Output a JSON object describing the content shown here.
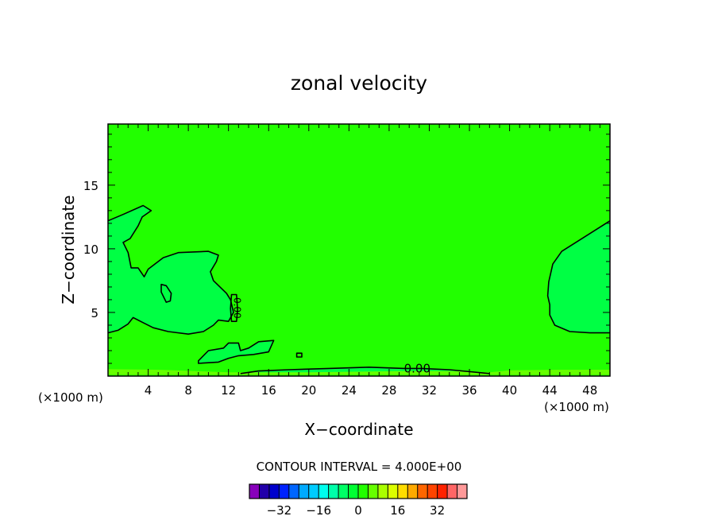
{
  "chart_data": {
    "type": "heatmap",
    "title": "zonal velocity",
    "xlabel": "X−coordinate",
    "ylabel": "Z−coordinate",
    "x_units_left": "(×1000 m)",
    "x_units_right": "(×1000 m)",
    "xlim": [
      0,
      50
    ],
    "ylim": [
      0,
      19.8
    ],
    "x_ticks": [
      4,
      8,
      12,
      16,
      20,
      24,
      28,
      32,
      36,
      40,
      44,
      48
    ],
    "x_tick_labels": [
      "4",
      "8",
      "12",
      "16",
      "20",
      "24",
      "28",
      "32",
      "36",
      "40",
      "44",
      "48"
    ],
    "y_ticks": [
      5,
      10,
      15
    ],
    "y_tick_labels": [
      "5",
      "10",
      "15"
    ],
    "background_color": "#22ff00",
    "contour_label": "0.00",
    "contour_interval_text": "CONTOUR INTERVAL = 4.000E+00",
    "colorbar": {
      "colors": [
        "#8800bb",
        "#2200aa",
        "#0000cc",
        "#0022ff",
        "#0066ff",
        "#00aaff",
        "#00ccff",
        "#00ffee",
        "#00ffaa",
        "#00ff66",
        "#00ff33",
        "#22ff00",
        "#66ff00",
        "#aaff00",
        "#ddff00",
        "#ffdd00",
        "#ffaa00",
        "#ff6600",
        "#ff4400",
        "#ff2200",
        "#ff6666",
        "#ff9999"
      ],
      "tick_labels": [
        "−32",
        "−16",
        "0",
        "16",
        "32"
      ],
      "tick_values": [
        -32,
        -16,
        0,
        16,
        32
      ]
    },
    "regions": [
      {
        "name": "west-mid-region",
        "color": "#00ff44",
        "boundary": [
          [
            0,
            3.4
          ],
          [
            1,
            3.6
          ],
          [
            2,
            4.1
          ],
          [
            2.5,
            4.6
          ],
          [
            3.5,
            4.2
          ],
          [
            4.5,
            3.8
          ],
          [
            6,
            3.5
          ],
          [
            8,
            3.3
          ],
          [
            9.5,
            3.5
          ],
          [
            10.5,
            4.0
          ],
          [
            11,
            4.4
          ],
          [
            12,
            4.3
          ],
          [
            12.5,
            5.0
          ],
          [
            12.2,
            6.0
          ],
          [
            11.8,
            6.5
          ],
          [
            10.5,
            7.5
          ],
          [
            10.2,
            8.2
          ],
          [
            10.8,
            9.0
          ],
          [
            11,
            9.5
          ],
          [
            10,
            9.8
          ],
          [
            7,
            9.7
          ],
          [
            5.5,
            9.3
          ],
          [
            4,
            8.4
          ],
          [
            3.6,
            7.8
          ],
          [
            3,
            8.5
          ],
          [
            2.3,
            8.5
          ],
          [
            2,
            9.7
          ],
          [
            1.5,
            10.5
          ],
          [
            2.2,
            10.8
          ],
          [
            3,
            11.8
          ],
          [
            3.4,
            12.5
          ],
          [
            4.3,
            13.0
          ],
          [
            3.5,
            13.4
          ],
          [
            1.5,
            12.7
          ],
          [
            0,
            12.2
          ]
        ]
      },
      {
        "name": "east-region",
        "color": "#00ff44",
        "boundary": [
          [
            50,
            3.4
          ],
          [
            48,
            3.4
          ],
          [
            46,
            3.5
          ],
          [
            44.5,
            4.0
          ],
          [
            44,
            4.8
          ],
          [
            44,
            5.6
          ],
          [
            43.8,
            6.3
          ],
          [
            43.9,
            7.4
          ],
          [
            44.3,
            8.8
          ],
          [
            45.2,
            9.8
          ],
          [
            47,
            10.7
          ],
          [
            49,
            11.7
          ],
          [
            50,
            12.2
          ]
        ]
      },
      {
        "name": "bottom-strip-region",
        "color": "#00ff44",
        "boundary": [
          [
            9,
            1.0
          ],
          [
            11,
            1.1
          ],
          [
            12,
            1.4
          ],
          [
            13,
            1.6
          ],
          [
            14.5,
            1.7
          ],
          [
            16,
            1.9
          ],
          [
            16.5,
            2.8
          ],
          [
            15,
            2.7
          ],
          [
            14,
            2.2
          ],
          [
            13.2,
            2.0
          ],
          [
            13,
            2.6
          ],
          [
            12,
            2.6
          ],
          [
            11.5,
            2.2
          ],
          [
            10,
            2.0
          ],
          [
            9,
            1.2
          ]
        ]
      },
      {
        "name": "bottom-shear-region",
        "color": "#00ff44",
        "boundary": [
          [
            13.2,
            0.2
          ],
          [
            15,
            0.4
          ],
          [
            18,
            0.5
          ],
          [
            22,
            0.6
          ],
          [
            26,
            0.7
          ],
          [
            30,
            0.6
          ],
          [
            34,
            0.5
          ],
          [
            38,
            0.2
          ],
          [
            13.2,
            0.2
          ]
        ]
      },
      {
        "name": "bottom-layer-region",
        "color": "#66ff00",
        "boundary": [
          [
            0,
            0.1
          ],
          [
            50,
            0.1
          ],
          [
            50,
            0.5
          ],
          [
            45,
            0.5
          ],
          [
            40,
            0.45
          ],
          [
            38,
            0.3
          ],
          [
            34,
            0.4
          ],
          [
            30,
            0.4
          ],
          [
            20,
            0.3
          ],
          [
            12,
            0.3
          ],
          [
            5,
            0.5
          ],
          [
            0,
            0.55
          ]
        ]
      }
    ],
    "contours": [
      {
        "name": "contour-west",
        "closed": false,
        "points": [
          [
            0,
            3.4
          ],
          [
            1,
            3.6
          ],
          [
            2,
            4.1
          ],
          [
            2.5,
            4.6
          ],
          [
            3.5,
            4.2
          ],
          [
            4.5,
            3.8
          ],
          [
            6,
            3.5
          ],
          [
            8,
            3.3
          ],
          [
            9.5,
            3.5
          ],
          [
            10.5,
            4.0
          ],
          [
            11,
            4.4
          ],
          [
            12,
            4.3
          ],
          [
            12.5,
            5.0
          ],
          [
            12.2,
            6.0
          ],
          [
            11.8,
            6.5
          ],
          [
            10.5,
            7.5
          ],
          [
            10.2,
            8.2
          ],
          [
            10.8,
            9.0
          ],
          [
            11,
            9.5
          ],
          [
            10,
            9.8
          ],
          [
            7,
            9.7
          ],
          [
            5.5,
            9.3
          ],
          [
            4,
            8.4
          ],
          [
            3.6,
            7.8
          ],
          [
            3,
            8.5
          ],
          [
            2.3,
            8.5
          ],
          [
            2,
            9.7
          ],
          [
            1.5,
            10.5
          ],
          [
            2.2,
            10.8
          ],
          [
            3,
            11.8
          ],
          [
            3.4,
            12.5
          ],
          [
            4.3,
            13.0
          ],
          [
            3.5,
            13.4
          ],
          [
            1.5,
            12.7
          ],
          [
            0,
            12.2
          ]
        ]
      },
      {
        "name": "contour-east",
        "closed": false,
        "points": [
          [
            50,
            3.4
          ],
          [
            48,
            3.4
          ],
          [
            46,
            3.5
          ],
          [
            44.5,
            4.0
          ],
          [
            44,
            4.8
          ],
          [
            44,
            5.6
          ],
          [
            43.8,
            6.3
          ],
          [
            43.9,
            7.4
          ],
          [
            44.3,
            8.8
          ],
          [
            45.2,
            9.8
          ],
          [
            47,
            10.7
          ],
          [
            49,
            11.7
          ],
          [
            50,
            12.2
          ]
        ]
      },
      {
        "name": "contour-loop",
        "closed": true,
        "points": [
          [
            5.3,
            7.2
          ],
          [
            5.8,
            7.1
          ],
          [
            6.3,
            6.5
          ],
          [
            6.2,
            5.9
          ],
          [
            5.8,
            5.8
          ],
          [
            5.3,
            6.6
          ]
        ]
      },
      {
        "name": "contour-label-loop",
        "closed": true,
        "points": [
          [
            12.3,
            6.4
          ],
          [
            12.8,
            6.4
          ],
          [
            12.9,
            5.2
          ],
          [
            12.8,
            4.3
          ],
          [
            12.3,
            4.3
          ],
          [
            12.2,
            5.3
          ]
        ]
      },
      {
        "name": "contour-bottom-strip",
        "closed": true,
        "points": [
          [
            9,
            1.0
          ],
          [
            11,
            1.1
          ],
          [
            12,
            1.4
          ],
          [
            13,
            1.6
          ],
          [
            14.5,
            1.7
          ],
          [
            16,
            1.9
          ],
          [
            16.5,
            2.8
          ],
          [
            15,
            2.7
          ],
          [
            14,
            2.2
          ],
          [
            13.2,
            2.0
          ],
          [
            13,
            2.6
          ],
          [
            12,
            2.6
          ],
          [
            11.5,
            2.2
          ],
          [
            10,
            2.0
          ],
          [
            9,
            1.2
          ]
        ]
      },
      {
        "name": "contour-bottom-line",
        "closed": false,
        "points": [
          [
            13.2,
            0.2
          ],
          [
            15,
            0.4
          ],
          [
            18,
            0.5
          ],
          [
            22,
            0.6
          ],
          [
            26,
            0.7
          ],
          [
            29.5,
            0.6
          ],
          [
            31.2,
            0.6
          ],
          [
            34,
            0.5
          ],
          [
            38,
            0.2
          ]
        ]
      },
      {
        "name": "contour-small-mark",
        "closed": true,
        "points": [
          [
            18.8,
            1.8
          ],
          [
            19.3,
            1.8
          ],
          [
            19.3,
            1.5
          ],
          [
            18.8,
            1.5
          ]
        ]
      }
    ],
    "contour_label_position": [
      30.8,
      0.6
    ]
  }
}
